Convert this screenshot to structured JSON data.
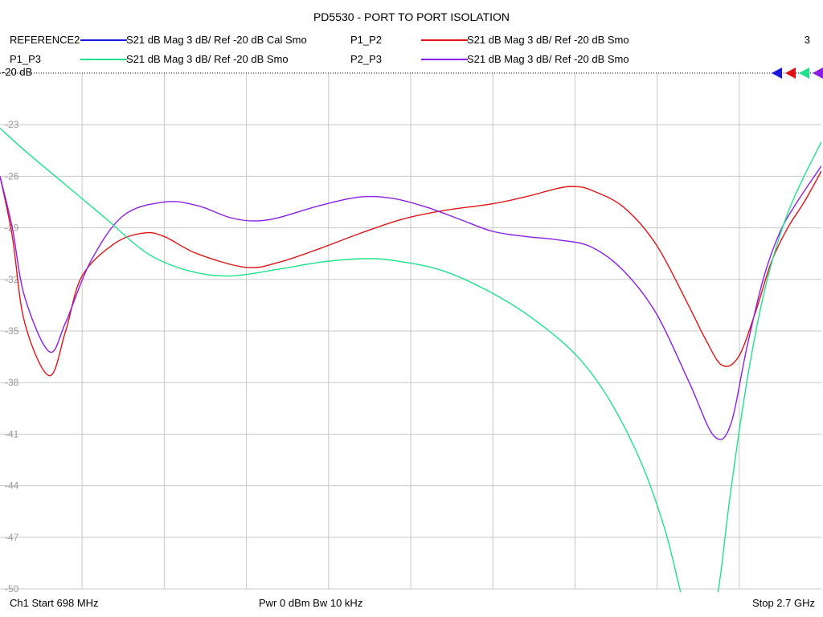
{
  "header": {
    "title": "PD5530 - PORT TO PORT ISOLATION",
    "channel_number": "3"
  },
  "legend": [
    {
      "name": "REFERENCE2",
      "desc": "S21  dB Mag  3 dB/ Ref -20 dB  Cal Smo",
      "color": "#1a1adb"
    },
    {
      "name": "P1_P2",
      "desc": "S21  dB Mag  3 dB/ Ref -20 dB  Smo",
      "color": "#e01414"
    },
    {
      "name": "P1_P3",
      "desc": "S21  dB Mag  3 dB/ Ref -20 dB  Smo",
      "color": "#1ee28a"
    },
    {
      "name": "P2_P3",
      "desc": "S21  dB Mag  3 dB/ Ref -20 dB  Smo",
      "color": "#8a1ee6"
    }
  ],
  "reference_label": "-20 dB",
  "footer": {
    "start": "Ch1  Start  698 MHz",
    "center": "Pwr  0 dBm  Bw  10 kHz",
    "stop": "Stop  2.7 GHz"
  },
  "chart_data": {
    "type": "line",
    "title": "PD5530 - PORT TO PORT ISOLATION",
    "x_start_mhz": 698,
    "x_stop_mhz": 2700,
    "ylim": [
      -50,
      -20
    ],
    "y_ticks": [
      -20,
      -23,
      -26,
      -29,
      -32,
      -35,
      -38,
      -41,
      -44,
      -47,
      -50
    ],
    "y_tick_labels": [
      "-20",
      "-23",
      "-26",
      "-29",
      "-32",
      "-35",
      "-38",
      "-41",
      "-44",
      "-47",
      "-50"
    ],
    "x_divisions": 10,
    "grid": true,
    "reference_level": -20,
    "series": [
      {
        "name": "P1_P2",
        "color": "#e01414",
        "points": [
          [
            698,
            -26.0
          ],
          [
            728,
            -29.5
          ],
          [
            758,
            -34.5
          ],
          [
            818,
            -37.6
          ],
          [
            858,
            -35.0
          ],
          [
            898,
            -31.8
          ],
          [
            978,
            -29.9
          ],
          [
            1048,
            -29.3
          ],
          [
            1098,
            -29.5
          ],
          [
            1178,
            -30.5
          ],
          [
            1298,
            -31.3
          ],
          [
            1378,
            -31.0
          ],
          [
            1478,
            -30.2
          ],
          [
            1578,
            -29.3
          ],
          [
            1678,
            -28.5
          ],
          [
            1778,
            -28.0
          ],
          [
            1898,
            -27.6
          ],
          [
            1978,
            -27.2
          ],
          [
            2058,
            -26.7
          ],
          [
            2098,
            -26.6
          ],
          [
            2138,
            -26.8
          ],
          [
            2218,
            -27.8
          ],
          [
            2298,
            -30.0
          ],
          [
            2378,
            -33.6
          ],
          [
            2418,
            -35.5
          ],
          [
            2458,
            -37.0
          ],
          [
            2498,
            -36.5
          ],
          [
            2538,
            -34.0
          ],
          [
            2578,
            -31.0
          ],
          [
            2618,
            -29.0
          ],
          [
            2658,
            -27.5
          ],
          [
            2700,
            -25.7
          ]
        ]
      },
      {
        "name": "P2_P3",
        "color": "#8a1ee6",
        "points": [
          [
            698,
            -26.0
          ],
          [
            728,
            -29.0
          ],
          [
            758,
            -33.0
          ],
          [
            818,
            -36.2
          ],
          [
            858,
            -34.5
          ],
          [
            918,
            -31.0
          ],
          [
            998,
            -28.3
          ],
          [
            1098,
            -27.5
          ],
          [
            1178,
            -27.7
          ],
          [
            1258,
            -28.4
          ],
          [
            1318,
            -28.6
          ],
          [
            1378,
            -28.4
          ],
          [
            1478,
            -27.7
          ],
          [
            1578,
            -27.2
          ],
          [
            1658,
            -27.3
          ],
          [
            1738,
            -27.8
          ],
          [
            1818,
            -28.5
          ],
          [
            1898,
            -29.2
          ],
          [
            1978,
            -29.5
          ],
          [
            2058,
            -29.7
          ],
          [
            2138,
            -30.1
          ],
          [
            2218,
            -31.5
          ],
          [
            2298,
            -34.0
          ],
          [
            2378,
            -38.0
          ],
          [
            2438,
            -41.1
          ],
          [
            2478,
            -40.5
          ],
          [
            2518,
            -36.0
          ],
          [
            2558,
            -32.0
          ],
          [
            2598,
            -29.3
          ],
          [
            2638,
            -27.6
          ],
          [
            2700,
            -25.4
          ]
        ]
      },
      {
        "name": "P1_P3",
        "color": "#1ee28a",
        "points": [
          [
            698,
            -23.2
          ],
          [
            758,
            -24.5
          ],
          [
            858,
            -26.5
          ],
          [
            958,
            -28.5
          ],
          [
            1058,
            -30.5
          ],
          [
            1158,
            -31.5
          ],
          [
            1258,
            -31.8
          ],
          [
            1378,
            -31.4
          ],
          [
            1478,
            -31.0
          ],
          [
            1578,
            -30.8
          ],
          [
            1658,
            -30.9
          ],
          [
            1778,
            -31.5
          ],
          [
            1898,
            -32.8
          ],
          [
            1998,
            -34.3
          ],
          [
            2098,
            -36.3
          ],
          [
            2178,
            -38.8
          ],
          [
            2258,
            -42.5
          ],
          [
            2318,
            -46.5
          ],
          [
            2358,
            -50.3
          ],
          [
            2378,
            -52.0
          ],
          [
            2418,
            -53.0
          ],
          [
            2448,
            -50.2
          ],
          [
            2478,
            -44.5
          ],
          [
            2518,
            -38.0
          ],
          [
            2558,
            -33.0
          ],
          [
            2598,
            -29.5
          ],
          [
            2638,
            -27.0
          ],
          [
            2700,
            -24.0
          ]
        ]
      }
    ]
  }
}
